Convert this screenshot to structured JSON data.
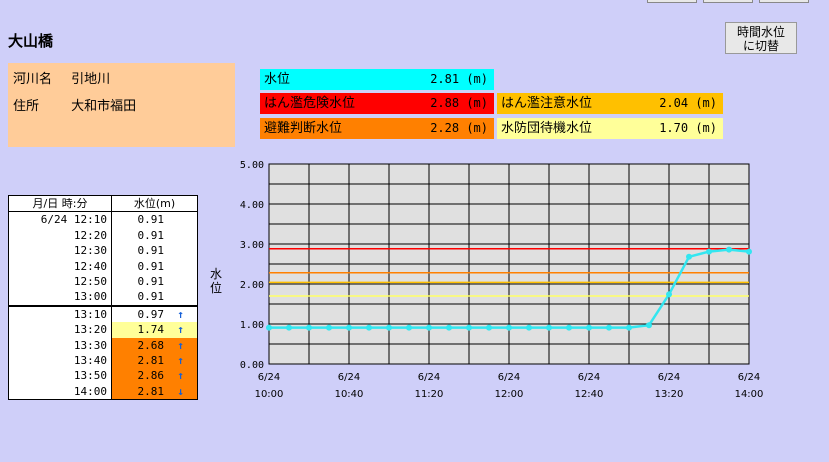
{
  "station": {
    "name": "大山橋"
  },
  "switch_button": {
    "line1": "時間水位",
    "line2": "に切替"
  },
  "info": {
    "river_label": "河川名",
    "river_value": "引地川",
    "address_label": "住所",
    "address_value": "大和市福田"
  },
  "levels": [
    {
      "label": "水位",
      "value": "2.81 (m)",
      "color": "#00ffff"
    },
    {
      "label": "はん濫危険水位",
      "value": "2.88 (m)",
      "color": "#ff0000"
    },
    {
      "label": "はん濫注意水位",
      "value": "2.04 (m)",
      "color": "#ffc000"
    },
    {
      "label": "避難判断水位",
      "value": "2.28 (m)",
      "color": "#ff8000"
    },
    {
      "label": "水防団待機水位",
      "value": "1.70 (m)",
      "color": "#ffff99"
    }
  ],
  "table": {
    "header_time": "月/日 時:分",
    "header_level": "水位(m)",
    "rows": [
      {
        "time": "6/24 12:10",
        "level": "0.91",
        "arrow": "",
        "bg": "#ffffff"
      },
      {
        "time": "12:20",
        "level": "0.91",
        "arrow": "",
        "bg": "#ffffff"
      },
      {
        "time": "12:30",
        "level": "0.91",
        "arrow": "",
        "bg": "#ffffff"
      },
      {
        "time": "12:40",
        "level": "0.91",
        "arrow": "",
        "bg": "#ffffff"
      },
      {
        "time": "12:50",
        "level": "0.91",
        "arrow": "",
        "bg": "#ffffff"
      },
      {
        "time": "13:00",
        "level": "0.91",
        "arrow": "",
        "bg": "#ffffff"
      },
      {
        "time": "13:10",
        "level": "0.97",
        "arrow": "↑",
        "bg": "#ffffff"
      },
      {
        "time": "13:20",
        "level": "1.74",
        "arrow": "↑",
        "bg": "#ffff99"
      },
      {
        "time": "13:30",
        "level": "2.68",
        "arrow": "↑",
        "bg": "#ff8000"
      },
      {
        "time": "13:40",
        "level": "2.81",
        "arrow": "↑",
        "bg": "#ff8000"
      },
      {
        "time": "13:50",
        "level": "2.86",
        "arrow": "↑",
        "bg": "#ff8000"
      },
      {
        "time": "14:00",
        "level": "2.81",
        "arrow": "↓",
        "bg": "#ff8000"
      }
    ]
  },
  "chart_data": {
    "type": "line",
    "ylabel": "水位",
    "ylim": [
      0,
      5
    ],
    "y_ticks": [
      "0.00",
      "1.00",
      "2.00",
      "3.00",
      "4.00",
      "5.00"
    ],
    "x_ticks": [
      {
        "date": "6/24",
        "time": "10:00"
      },
      {
        "date": "6/24",
        "time": "10:40"
      },
      {
        "date": "6/24",
        "time": "11:20"
      },
      {
        "date": "6/24",
        "time": "12:00"
      },
      {
        "date": "6/24",
        "time": "12:40"
      },
      {
        "date": "6/24",
        "time": "13:20"
      },
      {
        "date": "6/24",
        "time": "14:00"
      }
    ],
    "x_start": "10:00",
    "x_end": "14:00",
    "grid": true,
    "series": [
      {
        "color": "#33e6f0",
        "x": [
          "10:00",
          "10:10",
          "10:20",
          "10:30",
          "10:40",
          "10:50",
          "11:00",
          "11:10",
          "11:20",
          "11:30",
          "11:40",
          "11:50",
          "12:00",
          "12:10",
          "12:20",
          "12:30",
          "12:40",
          "12:50",
          "13:00",
          "13:10",
          "13:20",
          "13:30",
          "13:40",
          "13:50",
          "14:00"
        ],
        "y": [
          0.91,
          0.91,
          0.91,
          0.91,
          0.91,
          0.91,
          0.91,
          0.91,
          0.91,
          0.91,
          0.91,
          0.91,
          0.91,
          0.91,
          0.91,
          0.91,
          0.91,
          0.91,
          0.91,
          0.97,
          1.74,
          2.68,
          2.81,
          2.86,
          2.81
        ]
      }
    ],
    "reference_lines": [
      {
        "value": 2.88,
        "color": "#ff0000"
      },
      {
        "value": 2.28,
        "color": "#ff8000"
      },
      {
        "value": 2.04,
        "color": "#ffc000"
      },
      {
        "value": 1.7,
        "color": "#ffff66"
      }
    ]
  }
}
